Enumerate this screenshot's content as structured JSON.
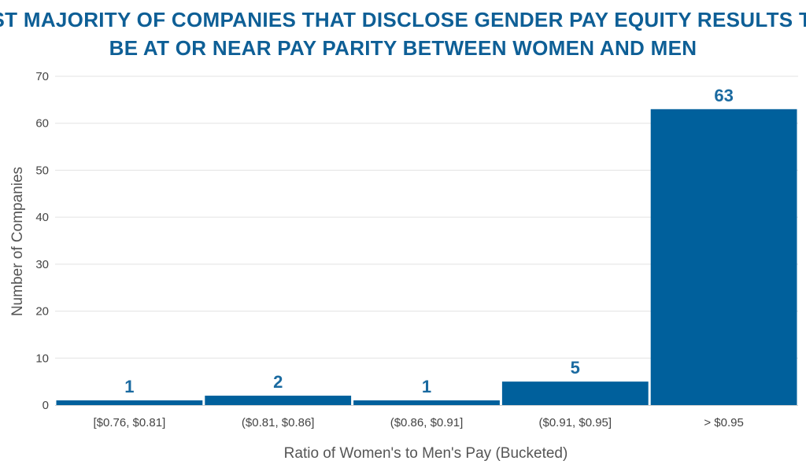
{
  "chart_data": {
    "type": "bar",
    "title_lines": [
      "THE VAST MAJORITY OF COMPANIES THAT DISCLOSE GENDER PAY EQUITY RESULTS TEND TO",
      "BE AT OR NEAR PAY PARITY BETWEEN WOMEN AND MEN"
    ],
    "xlabel": "Ratio of Women's to Men's Pay (Bucketed)",
    "ylabel": "Number of Companies",
    "categories": [
      "[$0.76, $0.81]",
      "($0.81, $0.86]",
      "($0.86, $0.91]",
      "($0.91, $0.95]",
      "> $0.95"
    ],
    "values": [
      1,
      2,
      1,
      5,
      63
    ],
    "data_labels": [
      "1",
      "2",
      "1",
      "5",
      "63"
    ],
    "ylim": [
      0,
      70
    ],
    "yticks": [
      0,
      10,
      20,
      30,
      40,
      50,
      60,
      70
    ],
    "grid": true,
    "colors": {
      "bar": "#00609c",
      "title": "#0e5f96",
      "label": "#1a6aa0"
    }
  }
}
